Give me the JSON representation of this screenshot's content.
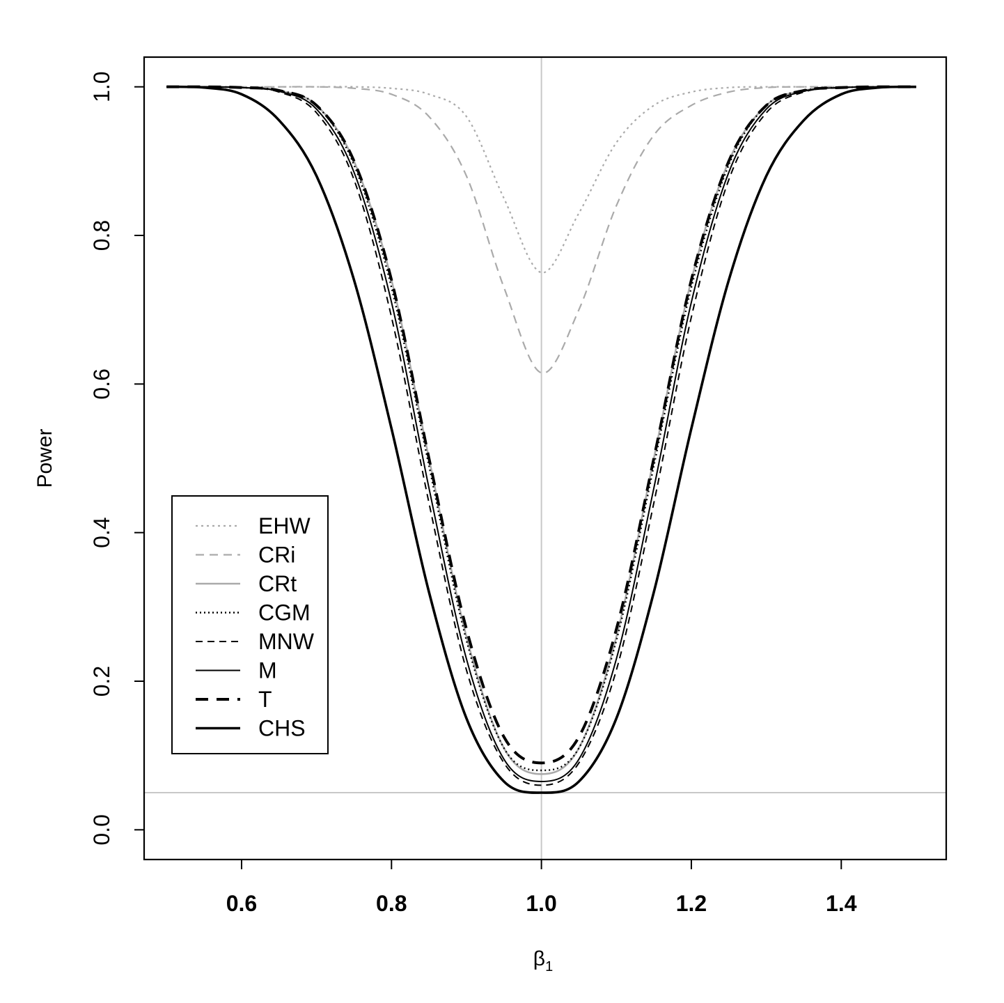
{
  "chart_data": {
    "type": "line",
    "title": "",
    "xlabel": "β1",
    "ylabel": "Power",
    "xlim": [
      0.47,
      1.54
    ],
    "ylim": [
      -0.04,
      1.04
    ],
    "x_ticks": [
      "0.6",
      "0.8",
      "1.0",
      "1.2",
      "1.4"
    ],
    "y_ticks": [
      "0.0",
      "0.2",
      "0.4",
      "0.6",
      "0.8",
      "1.0"
    ],
    "reference_lines": {
      "vertical_x": 1.0,
      "horizontal_y": 0.05
    },
    "legend_position": "bottom-left",
    "x": [
      0.5,
      0.55,
      0.6,
      0.65,
      0.7,
      0.75,
      0.8,
      0.85,
      0.9,
      0.95,
      1.0,
      1.05,
      1.1,
      1.15,
      1.2,
      1.25,
      1.3,
      1.35,
      1.4,
      1.45,
      1.5
    ],
    "series": [
      {
        "name": "EHW",
        "color": "#aaaaaa",
        "dash": "3 5",
        "width": 2.2,
        "values": [
          1.0,
          1.0,
          1.0,
          1.0,
          1.0,
          1.0,
          0.998,
          0.99,
          0.96,
          0.85,
          0.75,
          0.83,
          0.925,
          0.975,
          0.993,
          0.999,
          1.0,
          1.0,
          1.0,
          1.0,
          1.0
        ]
      },
      {
        "name": "CRi",
        "color": "#aaaaaa",
        "dash": "12 8",
        "width": 2.2,
        "values": [
          1.0,
          1.0,
          1.0,
          1.0,
          1.0,
          0.998,
          0.99,
          0.96,
          0.88,
          0.73,
          0.615,
          0.7,
          0.84,
          0.935,
          0.975,
          0.993,
          0.999,
          1.0,
          1.0,
          1.0,
          1.0
        ]
      },
      {
        "name": "CRt",
        "color": "#aaaaaa",
        "dash": "",
        "width": 2.5,
        "values": [
          1.0,
          1.0,
          0.999,
          0.995,
          0.975,
          0.9,
          0.74,
          0.5,
          0.26,
          0.11,
          0.075,
          0.11,
          0.26,
          0.5,
          0.74,
          0.9,
          0.975,
          0.995,
          0.999,
          1.0,
          1.0
        ]
      },
      {
        "name": "CGM",
        "color": "#000000",
        "dash": "2 4",
        "width": 2.4,
        "values": [
          1.0,
          1.0,
          0.999,
          0.995,
          0.975,
          0.895,
          0.73,
          0.49,
          0.255,
          0.11,
          0.08,
          0.11,
          0.255,
          0.49,
          0.73,
          0.895,
          0.975,
          0.995,
          0.999,
          1.0,
          1.0
        ]
      },
      {
        "name": "MNW",
        "color": "#000000",
        "dash": "10 7",
        "width": 2.0,
        "values": [
          1.0,
          1.0,
          0.999,
          0.993,
          0.965,
          0.875,
          0.69,
          0.44,
          0.215,
          0.09,
          0.06,
          0.09,
          0.215,
          0.44,
          0.69,
          0.875,
          0.965,
          0.993,
          0.999,
          1.0,
          1.0
        ]
      },
      {
        "name": "M",
        "color": "#000000",
        "dash": "",
        "width": 2.0,
        "values": [
          1.0,
          1.0,
          0.999,
          0.994,
          0.97,
          0.885,
          0.71,
          0.46,
          0.23,
          0.095,
          0.065,
          0.095,
          0.23,
          0.46,
          0.71,
          0.885,
          0.97,
          0.994,
          0.999,
          1.0,
          1.0
        ]
      },
      {
        "name": "T",
        "color": "#000000",
        "dash": "18 12",
        "width": 4.0,
        "values": [
          1.0,
          1.0,
          0.999,
          0.995,
          0.975,
          0.9,
          0.74,
          0.5,
          0.27,
          0.125,
          0.09,
          0.125,
          0.27,
          0.5,
          0.74,
          0.9,
          0.975,
          0.995,
          0.999,
          1.0,
          1.0
        ]
      },
      {
        "name": "CHS",
        "color": "#000000",
        "dash": "",
        "width": 3.6,
        "values": [
          1.0,
          0.999,
          0.99,
          0.955,
          0.88,
          0.74,
          0.54,
          0.32,
          0.15,
          0.065,
          0.05,
          0.065,
          0.15,
          0.32,
          0.54,
          0.74,
          0.88,
          0.955,
          0.99,
          0.999,
          1.0
        ]
      }
    ]
  }
}
